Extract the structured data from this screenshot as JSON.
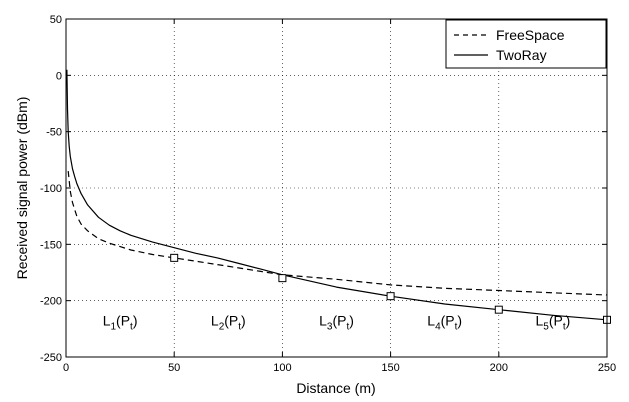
{
  "chart_data": {
    "type": "line",
    "title": "",
    "xlabel": "Distance (m)",
    "ylabel": "Received signal power (dBm)",
    "xlim": [
      0,
      250
    ],
    "ylim": [
      -250,
      50
    ],
    "x_ticks": [
      0,
      50,
      100,
      150,
      200,
      250
    ],
    "y_ticks": [
      50,
      0,
      -50,
      -100,
      -150,
      -200,
      -250
    ],
    "grid": true,
    "grid_style": "dotted",
    "legend": {
      "position": "top-right",
      "entries": [
        "FreeSpace",
        "TwoRay"
      ]
    },
    "series": [
      {
        "name": "FreeSpace",
        "style": "dashed",
        "color": "#000000",
        "x": [
          1,
          2,
          3,
          5,
          7,
          10,
          15,
          20,
          25,
          30,
          40,
          50,
          60,
          70,
          80,
          90,
          100,
          125,
          150,
          175,
          200,
          225,
          250
        ],
        "y": [
          -85,
          -103,
          -113,
          -125,
          -132,
          -138,
          -145,
          -149,
          -152,
          -155,
          -159,
          -162,
          -165,
          -168,
          -171,
          -174,
          -177,
          -181,
          -186,
          -189,
          -191,
          -193,
          -195
        ]
      },
      {
        "name": "TwoRay",
        "style": "solid",
        "color": "#000000",
        "x": [
          0.4,
          0.7,
          1,
          1.5,
          2,
          3,
          4,
          5,
          7,
          10,
          15,
          20,
          25,
          30,
          40,
          50,
          60,
          70,
          80,
          90,
          100,
          125,
          150,
          175,
          200,
          225,
          250
        ],
        "y": [
          5,
          -30,
          -50,
          -63,
          -72,
          -83,
          -90,
          -96,
          -105,
          -115,
          -126,
          -133,
          -138,
          -142,
          -148,
          -153,
          -158,
          -162,
          -167,
          -172,
          -177,
          -188,
          -196,
          -203,
          -208,
          -213,
          -217
        ]
      }
    ],
    "markers": {
      "shape": "square",
      "points": [
        {
          "x": 50,
          "y": -162
        },
        {
          "x": 100,
          "y": -180
        },
        {
          "x": 150,
          "y": -196
        },
        {
          "x": 200,
          "y": -208
        },
        {
          "x": 250,
          "y": -217
        }
      ]
    },
    "annotations": [
      {
        "main": "L",
        "sub1": "1",
        "mid": "(P",
        "sub2": "t",
        "end": ")",
        "x": 25,
        "y": -222
      },
      {
        "main": "L",
        "sub1": "2",
        "mid": "(P",
        "sub2": "t",
        "end": ")",
        "x": 75,
        "y": -222
      },
      {
        "main": "L",
        "sub1": "3",
        "mid": "(P",
        "sub2": "t",
        "end": ")",
        "x": 125,
        "y": -222
      },
      {
        "main": "L",
        "sub1": "4",
        "mid": "(P",
        "sub2": "t",
        "end": ")",
        "x": 175,
        "y": -222
      },
      {
        "main": "L",
        "sub1": "5",
        "mid": "(P",
        "sub2": "t",
        "end": ")",
        "x": 225,
        "y": -222
      }
    ]
  }
}
